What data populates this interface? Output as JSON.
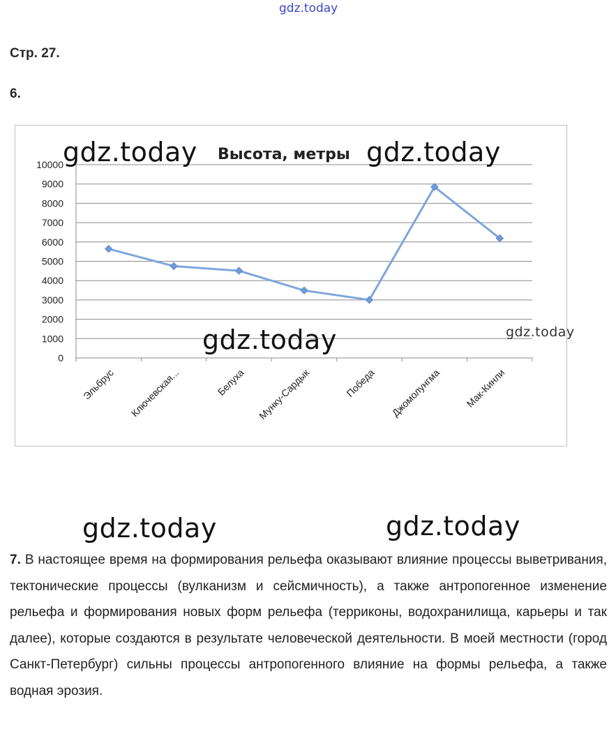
{
  "header": {
    "watermark": "gdz.today"
  },
  "page_label": "Стр. 27.",
  "task6": {
    "number": "6."
  },
  "watermarks": {
    "chart_left": "gdz.today",
    "chart_right": "gdz.today",
    "chart_middle": "gdz.today",
    "chart_small": "gdz.today",
    "lower_left": "gdz.today",
    "lower_right": "gdz.today"
  },
  "chart_data": {
    "type": "line",
    "title": "Высота, метры",
    "categories": [
      "Эльбрус",
      "Ключевская...",
      "Белуха",
      "Мунку-Сардык",
      "Победа",
      "Джомолунгма",
      "Мак-Кинли"
    ],
    "series": [
      {
        "values": [
          5642,
          4750,
          4509,
          3491,
          3003,
          8848,
          6190
        ]
      }
    ],
    "ylim": [
      0,
      10000
    ],
    "yticks": [
      "0",
      "1000",
      "2000",
      "3000",
      "4000",
      "5000",
      "6000",
      "7000",
      "8000",
      "9000",
      "10000"
    ],
    "grid": true,
    "line_color": "#7ea6dc",
    "marker_color": "#6f9bd8"
  },
  "task7": {
    "number": "7.",
    "text": "В настоящее время на формирования рельефа оказывают влияние процессы выветривания, тектонические процессы (вулканизм и сейсмичность), а также антропогенное изменение рельефа и формирования новых форм рельефа (терриконы, водохранилища, карьеры и так далее), которые создаются в результате человеческой деятельности. В моей местности (город Санкт-Петербург) сильны процессы антропогенного влияние на формы рельефа, а также водная эрозия."
  }
}
